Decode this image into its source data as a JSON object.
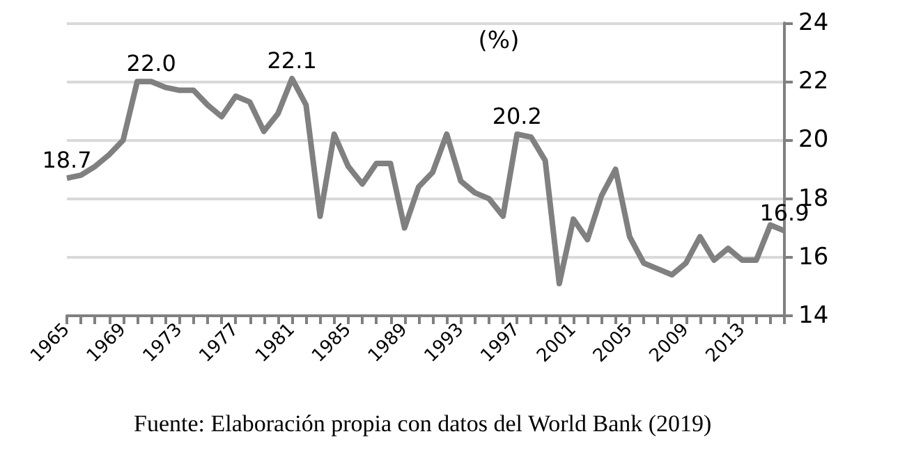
{
  "chart_data": {
    "type": "line",
    "title": "(%)",
    "categories": [
      "1965",
      null,
      null,
      null,
      "1969",
      null,
      null,
      null,
      "1973",
      null,
      null,
      null,
      "1977",
      null,
      null,
      null,
      "1981",
      null,
      null,
      null,
      "1985",
      null,
      null,
      null,
      "1989",
      null,
      null,
      null,
      "1993",
      null,
      null,
      null,
      "1997",
      null,
      null,
      null,
      "2001",
      null,
      null,
      null,
      "2005",
      null,
      null,
      null,
      "2009",
      null,
      null,
      null,
      "2013",
      null,
      null,
      null
    ],
    "series": [
      {
        "color": "#808080",
        "values": [
          18.7,
          18.8,
          19.1,
          19.5,
          20.0,
          22.0,
          22.0,
          21.8,
          21.7,
          21.7,
          21.2,
          20.8,
          21.5,
          21.3,
          20.3,
          20.9,
          22.1,
          21.2,
          17.4,
          20.2,
          19.1,
          18.5,
          19.2,
          19.2,
          17.0,
          18.4,
          18.9,
          20.2,
          18.6,
          18.2,
          18.0,
          17.4,
          20.2,
          20.1,
          19.3,
          15.1,
          17.3,
          16.6,
          18.1,
          19.0,
          16.7,
          15.8,
          15.6,
          15.4,
          15.8,
          16.7,
          15.9,
          16.3,
          15.9,
          15.9,
          17.1,
          16.9
        ],
        "value_labels": [
          "18.7",
          null,
          null,
          null,
          null,
          null,
          "22.0",
          null,
          null,
          null,
          null,
          null,
          null,
          null,
          null,
          null,
          "22.1",
          null,
          null,
          null,
          null,
          null,
          null,
          null,
          null,
          null,
          null,
          null,
          null,
          null,
          null,
          null,
          "20.2",
          null,
          null,
          null,
          null,
          null,
          null,
          null,
          null,
          null,
          null,
          null,
          null,
          null,
          null,
          null,
          null,
          null,
          null,
          "16.9"
        ]
      }
    ],
    "ylim": [
      14,
      24
    ],
    "yticks": [
      14,
      16,
      18,
      20,
      22,
      24
    ],
    "grid": "y",
    "marker": "none",
    "line_style": "solid",
    "annotations": [
      "Fuente: Elaboración propia con datos del World Bank (2019)"
    ]
  }
}
